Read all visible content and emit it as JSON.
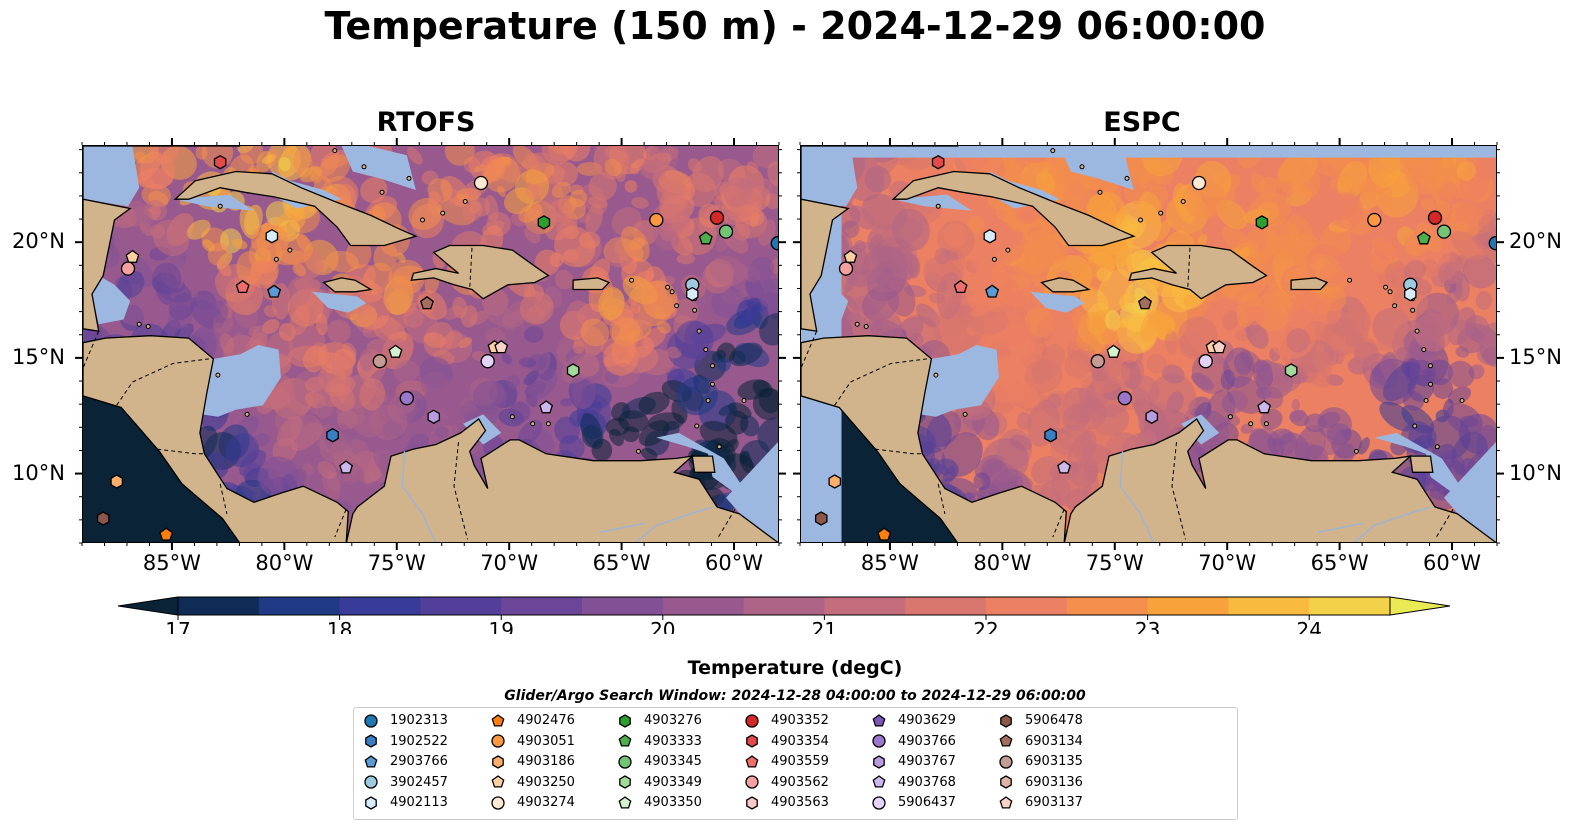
{
  "title": "Temperature (150 m) - 2024-12-29 06:00:00",
  "panels": [
    {
      "title": "RTOFS",
      "palette": "rtofs"
    },
    {
      "title": "ESPC",
      "palette": "espc"
    }
  ],
  "map": {
    "lon_range": [
      -89,
      -58
    ],
    "lat_range": [
      7,
      24.2
    ],
    "x_ticks": [
      "85°W",
      "80°W",
      "75°W",
      "70°W",
      "65°W",
      "60°W"
    ],
    "x_tick_values": [
      -85,
      -80,
      -75,
      -70,
      -65,
      -60
    ],
    "y_ticks": [
      "10°N",
      "15°N",
      "20°N"
    ],
    "y_tick_values": [
      10,
      15,
      20
    ],
    "land_color": "#d2b48c",
    "shallow_color": "#9db8e0"
  },
  "colorbar": {
    "label": "Temperature (degC)",
    "ticks": [
      "17",
      "18",
      "19",
      "20",
      "21",
      "22",
      "23",
      "24"
    ],
    "min": 16.75,
    "max": 24.5,
    "step": 0.5,
    "extend": "both",
    "colors": [
      "#0a2336",
      "#0f2c57",
      "#203a86",
      "#383b97",
      "#523f99",
      "#6b4698",
      "#815095",
      "#97598e",
      "#ad6486",
      "#c46d7c",
      "#d9766e",
      "#ec8062",
      "#f38e4d",
      "#f8a23c",
      "#f9ba40",
      "#f3d24a",
      "#eaea55"
    ]
  },
  "search_window": "Glider/Argo Search Window: 2024-12-28 04:00:00 to 2024-12-29 06:00:00",
  "legend": {
    "items": [
      {
        "id": "1902313",
        "shape": "circle",
        "color": "#1f77b4"
      },
      {
        "id": "1902522",
        "shape": "hexagon",
        "color": "#3a7fc4"
      },
      {
        "id": "2903766",
        "shape": "pentagon",
        "color": "#5b9bd5"
      },
      {
        "id": "3902457",
        "shape": "circle",
        "color": "#9ecae1"
      },
      {
        "id": "4902113",
        "shape": "hexagon",
        "color": "#d6ecfa"
      },
      {
        "id": "4902476",
        "shape": "pentagon",
        "color": "#ff7f0e"
      },
      {
        "id": "4903051",
        "shape": "circle",
        "color": "#fd9840"
      },
      {
        "id": "4903186",
        "shape": "hexagon",
        "color": "#fdae6b"
      },
      {
        "id": "4903250",
        "shape": "pentagon",
        "color": "#fdd0a2"
      },
      {
        "id": "4903274",
        "shape": "circle",
        "color": "#feead2"
      },
      {
        "id": "4903276",
        "shape": "hexagon",
        "color": "#2ca02c"
      },
      {
        "id": "4903333",
        "shape": "pentagon",
        "color": "#4daf4a"
      },
      {
        "id": "4903345",
        "shape": "circle",
        "color": "#74c476"
      },
      {
        "id": "4903349",
        "shape": "hexagon",
        "color": "#a1d99b"
      },
      {
        "id": "4903350",
        "shape": "pentagon",
        "color": "#d4f2cf"
      },
      {
        "id": "4903352",
        "shape": "circle",
        "color": "#d62728"
      },
      {
        "id": "4903354",
        "shape": "hexagon",
        "color": "#e34a4a"
      },
      {
        "id": "4903559",
        "shape": "pentagon",
        "color": "#ee6e6e"
      },
      {
        "id": "4903562",
        "shape": "circle",
        "color": "#f4a0a0"
      },
      {
        "id": "4903563",
        "shape": "hexagon",
        "color": "#fac8c8"
      },
      {
        "id": "4903629",
        "shape": "pentagon",
        "color": "#7b56b7"
      },
      {
        "id": "4903766",
        "shape": "circle",
        "color": "#9a76cc"
      },
      {
        "id": "4903767",
        "shape": "hexagon",
        "color": "#b89be0"
      },
      {
        "id": "4903768",
        "shape": "pentagon",
        "color": "#cdb8ee"
      },
      {
        "id": "5906437",
        "shape": "circle",
        "color": "#e3d3f8"
      },
      {
        "id": "5906478",
        "shape": "hexagon",
        "color": "#8c564b"
      },
      {
        "id": "6903134",
        "shape": "pentagon",
        "color": "#a36e5f"
      },
      {
        "id": "6903135",
        "shape": "circle",
        "color": "#c49c94"
      },
      {
        "id": "6903136",
        "shape": "hexagon",
        "color": "#e0b4a4"
      },
      {
        "id": "6903137",
        "shape": "pentagon",
        "color": "#f7d3c7"
      }
    ]
  },
  "markers": [
    {
      "lon": -82.9,
      "lat": 23.5,
      "shape": "hexagon",
      "color": "#e34a4a"
    },
    {
      "lon": -71.3,
      "lat": 22.6,
      "shape": "circle",
      "color": "#feead2"
    },
    {
      "lon": -68.5,
      "lat": 20.9,
      "shape": "hexagon",
      "color": "#2ca02c"
    },
    {
      "lon": -63.5,
      "lat": 21.0,
      "shape": "circle",
      "color": "#fd9840"
    },
    {
      "lon": -60.8,
      "lat": 21.1,
      "shape": "circle",
      "color": "#d62728"
    },
    {
      "lon": -61.3,
      "lat": 20.2,
      "shape": "pentagon",
      "color": "#4daf4a"
    },
    {
      "lon": -60.4,
      "lat": 20.5,
      "shape": "circle",
      "color": "#74c476"
    },
    {
      "lon": -58.1,
      "lat": 20.0,
      "shape": "circle",
      "color": "#1f77b4"
    },
    {
      "lon": -80.6,
      "lat": 20.3,
      "shape": "hexagon",
      "color": "#d6ecfa"
    },
    {
      "lon": -86.8,
      "lat": 19.4,
      "shape": "pentagon",
      "color": "#fdd0a2"
    },
    {
      "lon": -87.0,
      "lat": 18.9,
      "shape": "circle",
      "color": "#f4a0a0"
    },
    {
      "lon": -81.9,
      "lat": 18.1,
      "shape": "pentagon",
      "color": "#ee6e6e"
    },
    {
      "lon": -80.5,
      "lat": 17.9,
      "shape": "pentagon",
      "color": "#5b9bd5"
    },
    {
      "lon": -73.7,
      "lat": 17.4,
      "shape": "pentagon",
      "color": "#a36e5f"
    },
    {
      "lon": -61.9,
      "lat": 18.2,
      "shape": "circle",
      "color": "#9ecae1"
    },
    {
      "lon": -61.9,
      "lat": 17.8,
      "shape": "hexagon",
      "color": "#d6ecfa"
    },
    {
      "lon": -70.7,
      "lat": 15.5,
      "shape": "pentagon",
      "color": "#fdd0a2"
    },
    {
      "lon": -70.4,
      "lat": 15.5,
      "shape": "pentagon",
      "color": "#f7d3c7"
    },
    {
      "lon": -71.0,
      "lat": 14.9,
      "shape": "circle",
      "color": "#e3d3f8"
    },
    {
      "lon": -75.1,
      "lat": 15.3,
      "shape": "pentagon",
      "color": "#d4f2cf"
    },
    {
      "lon": -75.8,
      "lat": 14.9,
      "shape": "circle",
      "color": "#c49c94"
    },
    {
      "lon": -67.2,
      "lat": 14.5,
      "shape": "hexagon",
      "color": "#a1d99b"
    },
    {
      "lon": -74.6,
      "lat": 13.3,
      "shape": "circle",
      "color": "#9a76cc"
    },
    {
      "lon": -73.4,
      "lat": 12.5,
      "shape": "hexagon",
      "color": "#b89be0"
    },
    {
      "lon": -68.4,
      "lat": 12.9,
      "shape": "pentagon",
      "color": "#cdb8ee"
    },
    {
      "lon": -77.9,
      "lat": 11.7,
      "shape": "hexagon",
      "color": "#3a7fc4"
    },
    {
      "lon": -77.3,
      "lat": 10.3,
      "shape": "pentagon",
      "color": "#cdb8ee"
    },
    {
      "lon": -87.5,
      "lat": 9.7,
      "shape": "hexagon",
      "color": "#fdae6b"
    },
    {
      "lon": -88.1,
      "lat": 8.1,
      "shape": "hexagon",
      "color": "#8c564b"
    },
    {
      "lon": -85.3,
      "lat": 7.4,
      "shape": "pentagon",
      "color": "#ff7f0e"
    }
  ]
}
